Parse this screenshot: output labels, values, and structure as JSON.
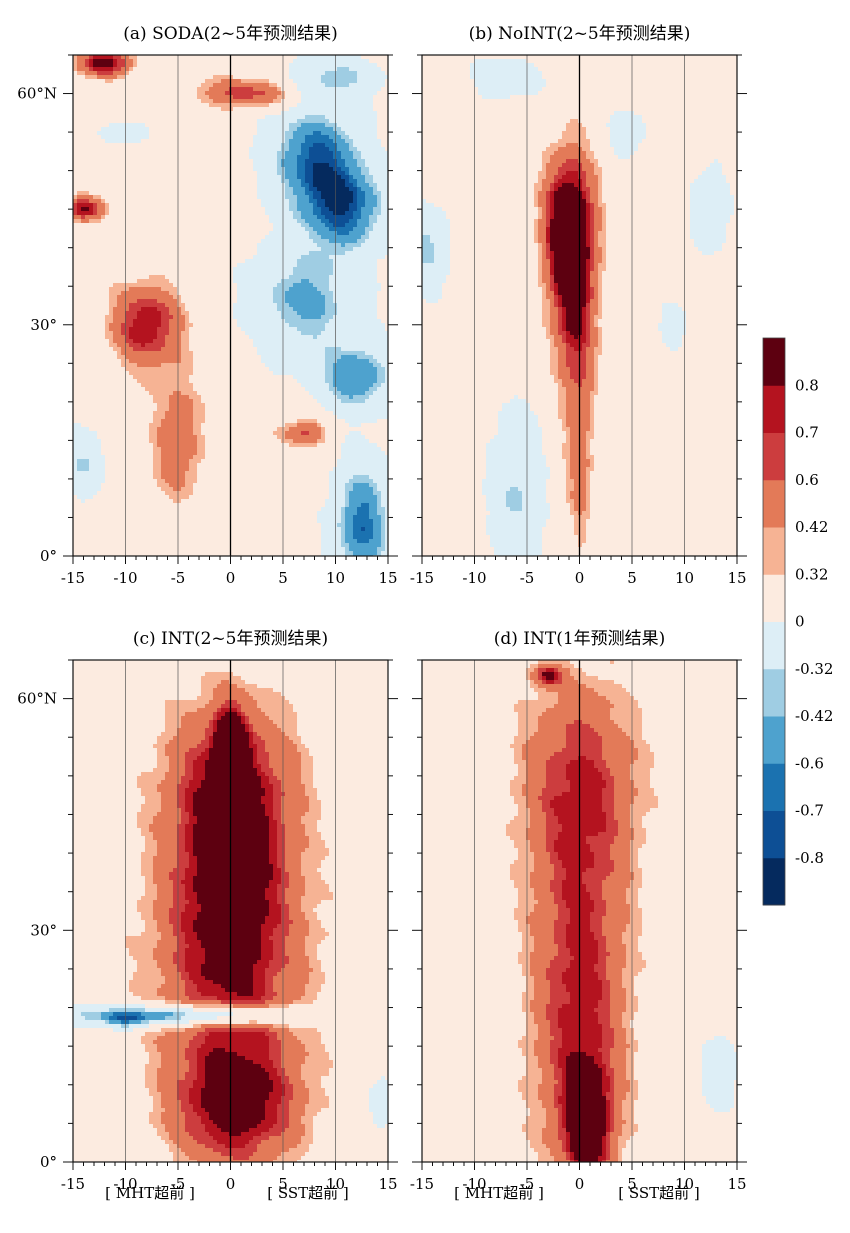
{
  "chart_data": [
    {
      "type": "heatmap",
      "panel_id": "a",
      "title": "(a) SODA(2~5年预测结果)",
      "x_range": [
        -15,
        15
      ],
      "y_range": [
        0,
        65
      ],
      "xticks": [
        "-15",
        "-10",
        "-5",
        "0",
        "5",
        "10",
        "15"
      ],
      "yticks": [
        {
          "value": 0,
          "label": "0°"
        },
        {
          "value": 30,
          "label": "30°"
        },
        {
          "value": 60,
          "label": "60°N"
        }
      ],
      "features": [
        {
          "x": 8,
          "y": 52,
          "sx": 3.2,
          "sy": 5,
          "v": -0.8
        },
        {
          "x": 11,
          "y": 45,
          "sx": 3,
          "sy": 4,
          "v": -0.75
        },
        {
          "x": 7,
          "y": 33,
          "sx": 4,
          "sy": 5,
          "v": -0.62
        },
        {
          "x": 12,
          "y": 23,
          "sx": 2.5,
          "sy": 3,
          "v": -0.72
        },
        {
          "x": 12.5,
          "y": 4,
          "sx": 2,
          "sy": 6,
          "v": -0.82
        },
        {
          "x": 10,
          "y": 62,
          "sx": 3,
          "sy": 2,
          "v": -0.5
        },
        {
          "x": -8,
          "y": 30,
          "sx": 2.5,
          "sy": 4,
          "v": 0.66
        },
        {
          "x": -5,
          "y": 15,
          "sx": 1.8,
          "sy": 6,
          "v": 0.44
        },
        {
          "x": -12,
          "y": 64,
          "sx": 2,
          "sy": 1.3,
          "v": 0.75
        },
        {
          "x": 2,
          "y": 60,
          "sx": 4,
          "sy": 1.5,
          "v": 0.55
        },
        {
          "x": -14,
          "y": 45,
          "sx": 1.5,
          "sy": 1.2,
          "v": 0.68
        },
        {
          "x": 7,
          "y": 16,
          "sx": 1.8,
          "sy": 1.3,
          "v": 0.5
        },
        {
          "x": -14,
          "y": 12,
          "sx": 1.5,
          "sy": 3,
          "v": -0.45
        },
        {
          "x": -10,
          "y": 55,
          "sx": 1.5,
          "sy": 1,
          "v": -0.45
        }
      ]
    },
    {
      "type": "heatmap",
      "panel_id": "b",
      "title": "(b) NoINT(2~5年预测结果)",
      "x_range": [
        -15,
        15
      ],
      "y_range": [
        0,
        65
      ],
      "xticks": [
        "-15",
        "-10",
        "-5",
        "0",
        "5",
        "10",
        "15"
      ],
      "yticks": [
        {
          "value": 0,
          "label": ""
        },
        {
          "value": 30,
          "label": ""
        },
        {
          "value": 60,
          "label": ""
        }
      ],
      "features": [
        {
          "x": -1,
          "y": 43,
          "sx": 1.8,
          "sy": 7,
          "v": 0.92
        },
        {
          "x": -0.5,
          "y": 30,
          "sx": 1.6,
          "sy": 8,
          "v": 0.52
        },
        {
          "x": 0,
          "y": 12,
          "sx": 1,
          "sy": 8,
          "v": 0.35
        },
        {
          "x": -6,
          "y": 8,
          "sx": 1.8,
          "sy": 8,
          "v": -0.5
        },
        {
          "x": -14.5,
          "y": 40,
          "sx": 1.5,
          "sy": 4,
          "v": -0.5
        },
        {
          "x": 4.5,
          "y": 55,
          "sx": 1.2,
          "sy": 2,
          "v": -0.46
        },
        {
          "x": 12.5,
          "y": 45,
          "sx": 1.3,
          "sy": 4,
          "v": -0.44
        },
        {
          "x": -7,
          "y": 62,
          "sx": 2.5,
          "sy": 2,
          "v": -0.38
        },
        {
          "x": 9,
          "y": 30,
          "sx": 1,
          "sy": 2,
          "v": -0.35
        }
      ]
    },
    {
      "type": "heatmap",
      "panel_id": "c",
      "title": "(c) INT(2~5年预测结果)",
      "x_range": [
        -15,
        15
      ],
      "y_range": [
        0,
        65
      ],
      "xticks": [
        "-15",
        "-10",
        "-5",
        "0",
        "5",
        "10",
        "15"
      ],
      "yticks": [
        {
          "value": 0,
          "label": "0°"
        },
        {
          "value": 30,
          "label": "30°"
        },
        {
          "value": 60,
          "label": "60°N"
        }
      ],
      "features": [
        {
          "x": 0,
          "y": 36,
          "sx": 4.2,
          "sy": 13,
          "v": 0.62
        },
        {
          "x": 0.5,
          "y": 7,
          "sx": 4.5,
          "sy": 6,
          "v": 0.67
        },
        {
          "x": 0,
          "y": 53,
          "sx": 1,
          "sy": 4,
          "v": 0.72
        },
        {
          "x": 0,
          "y": 50,
          "sx": 5,
          "sy": 8,
          "v": 0.38
        },
        {
          "x": 0,
          "y": 24,
          "sx": 7,
          "sy": 12,
          "v": 0.3
        },
        {
          "x": -5,
          "y": 19,
          "sx": 9,
          "sy": 0.9,
          "v": -0.9
        },
        {
          "x": -10,
          "y": 18,
          "sx": 1.5,
          "sy": 0.8,
          "v": -0.4
        },
        {
          "x": 14.5,
          "y": 8,
          "sx": 1,
          "sy": 3,
          "v": -0.34
        }
      ]
    },
    {
      "type": "heatmap",
      "panel_id": "d",
      "title": "(d) INT(1年预测结果)",
      "x_range": [
        -15,
        15
      ],
      "y_range": [
        0,
        65
      ],
      "xticks": [
        "-15",
        "-10",
        "-5",
        "0",
        "5",
        "10",
        "15"
      ],
      "yticks": [
        {
          "value": 0,
          "label": ""
        },
        {
          "value": 30,
          "label": ""
        },
        {
          "value": 60,
          "label": ""
        }
      ],
      "features": [
        {
          "x": 0,
          "y": 20,
          "sx": 3.5,
          "sy": 18,
          "v": 0.62
        },
        {
          "x": 0,
          "y": 50,
          "sx": 4.5,
          "sy": 10,
          "v": 0.45
        },
        {
          "x": 0.8,
          "y": 5,
          "sx": 1.5,
          "sy": 5,
          "v": 0.65
        },
        {
          "x": -3,
          "y": 63,
          "sx": 1,
          "sy": 1,
          "v": 0.55
        },
        {
          "x": 13.5,
          "y": 12,
          "sx": 1.3,
          "sy": 4,
          "v": -0.35
        }
      ]
    }
  ],
  "colorbar": {
    "levels": [
      -0.9,
      -0.8,
      -0.7,
      -0.6,
      -0.42,
      -0.32,
      0,
      0.32,
      0.42,
      0.6,
      0.7,
      0.8,
      0.9
    ],
    "colors": [
      "#052a5e",
      "#0d4f95",
      "#1b72b0",
      "#4ea2ce",
      "#9fcde3",
      "#ddeef6",
      "#fcebe0",
      "#f6b394",
      "#e37a58",
      "#cc3d3e",
      "#b4131f",
      "#5d0010"
    ],
    "labels": [
      "0.8",
      "0.7",
      "0.6",
      "0.42",
      "0.32",
      "0",
      "-0.32",
      "-0.42",
      "-0.6",
      "-0.7",
      "-0.8"
    ]
  },
  "captions": {
    "left": "[ MHT超前 ]",
    "right": "[ SST超前 ]"
  }
}
